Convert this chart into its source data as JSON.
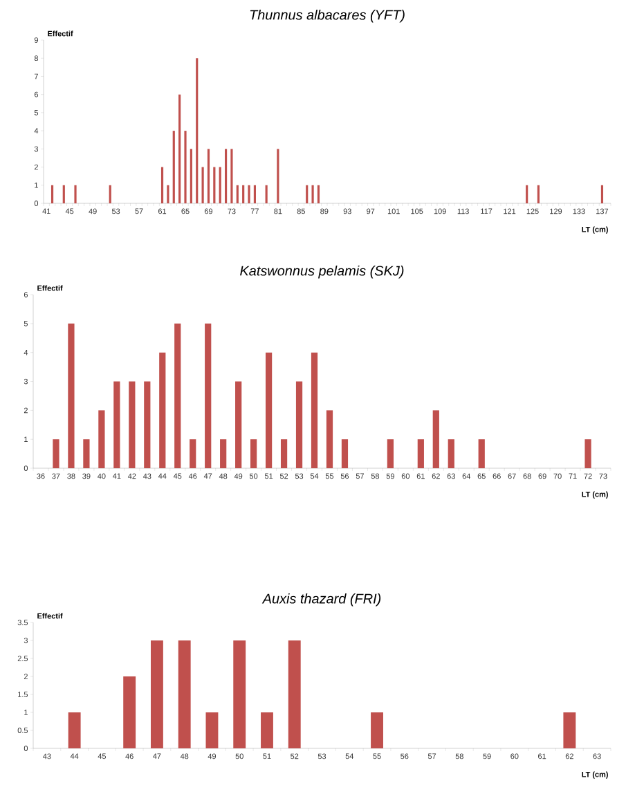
{
  "chart_data": [
    {
      "type": "bar",
      "title": "Thunnus albacares (YFT)",
      "xlabel": "LT (cm)",
      "ylabel": "Effectif",
      "color": "#c0504d",
      "categories": [
        "41",
        null,
        null,
        null,
        "45",
        null,
        null,
        null,
        "49",
        null,
        null,
        null,
        "53",
        null,
        null,
        null,
        "57",
        null,
        null,
        null,
        "61",
        null,
        null,
        null,
        "65",
        null,
        null,
        null,
        "69",
        null,
        null,
        null,
        "73",
        null,
        null,
        null,
        "77",
        null,
        null,
        null,
        "81",
        null,
        null,
        null,
        "85",
        null,
        null,
        null,
        "89",
        null,
        null,
        null,
        "93",
        null,
        null,
        null,
        "97",
        null,
        null,
        null,
        "101",
        null,
        null,
        null,
        "105",
        null,
        null,
        null,
        "109",
        null,
        null,
        null,
        "113",
        null,
        null,
        null,
        "117",
        null,
        null,
        null,
        "121",
        null,
        null,
        null,
        "125",
        null,
        null,
        null,
        "129",
        null,
        null,
        null,
        "133",
        null,
        null,
        null,
        "137",
        null
      ],
      "values": [
        0,
        1,
        0,
        1,
        0,
        1,
        0,
        0,
        0,
        0,
        0,
        1,
        0,
        0,
        0,
        0,
        0,
        0,
        0,
        0,
        2,
        1,
        4,
        6,
        4,
        3,
        8,
        2,
        3,
        2,
        2,
        3,
        3,
        1,
        1,
        1,
        1,
        0,
        1,
        0,
        3,
        0,
        0,
        0,
        0,
        1,
        1,
        1,
        0,
        0,
        0,
        0,
        0,
        0,
        0,
        0,
        0,
        0,
        0,
        0,
        0,
        0,
        0,
        0,
        0,
        0,
        0,
        0,
        0,
        0,
        0,
        0,
        0,
        0,
        0,
        0,
        0,
        0,
        0,
        0,
        0,
        0,
        0,
        1,
        0,
        1,
        0,
        0,
        0,
        0,
        0,
        0,
        0,
        0,
        0,
        0,
        1,
        0
      ],
      "ylim": [
        0,
        9
      ],
      "yticks": [
        0,
        1,
        2,
        3,
        4,
        5,
        6,
        7,
        8,
        9
      ]
    },
    {
      "type": "bar",
      "title": "Katswonnus pelamis (SKJ)",
      "xlabel": "LT (cm)",
      "ylabel": "Effectif",
      "color": "#c0504d",
      "categories": [
        "36",
        "37",
        "38",
        "39",
        "40",
        "41",
        "42",
        "43",
        "44",
        "45",
        "46",
        "47",
        "48",
        "49",
        "50",
        "51",
        "52",
        "53",
        "54",
        "55",
        "56",
        "57",
        "58",
        "59",
        "60",
        "61",
        "62",
        "63",
        "64",
        "65",
        "66",
        "67",
        "68",
        "69",
        "70",
        "71",
        "72",
        "73"
      ],
      "values": [
        0,
        1,
        5,
        1,
        2,
        3,
        3,
        3,
        4,
        5,
        1,
        5,
        1,
        3,
        1,
        4,
        1,
        3,
        4,
        2,
        1,
        0,
        0,
        1,
        0,
        1,
        2,
        1,
        0,
        1,
        0,
        0,
        0,
        0,
        0,
        0,
        1,
        0
      ],
      "ylim": [
        0,
        6
      ],
      "yticks": [
        0,
        1,
        2,
        3,
        4,
        5,
        6
      ]
    },
    {
      "type": "bar",
      "title": "Auxis thazard (FRI)",
      "xlabel": "LT (cm)",
      "ylabel": "Effectif",
      "color": "#c0504d",
      "categories": [
        "43",
        "44",
        "45",
        "46",
        "47",
        "48",
        "49",
        "50",
        "51",
        "52",
        "53",
        "54",
        "55",
        "56",
        "57",
        "58",
        "59",
        "60",
        "61",
        "62",
        "63"
      ],
      "values": [
        0,
        1,
        0,
        2,
        3,
        3,
        1,
        3,
        1,
        3,
        0,
        0,
        1,
        0,
        0,
        0,
        0,
        0,
        0,
        1,
        0
      ],
      "ylim": [
        0,
        3.5
      ],
      "yticks": [
        0,
        0.5,
        1,
        1.5,
        2,
        2.5,
        3,
        3.5
      ]
    }
  ]
}
